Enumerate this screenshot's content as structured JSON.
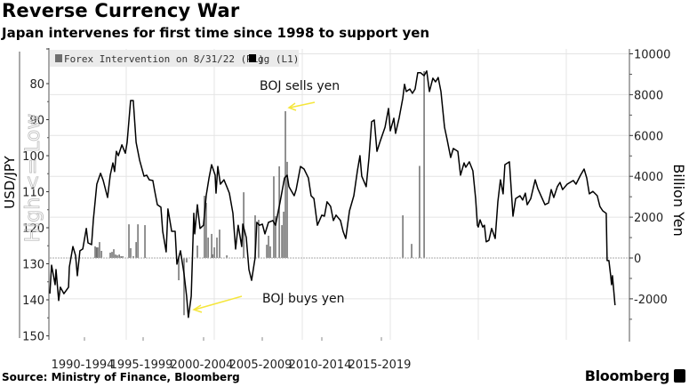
{
  "title": "Reverse Currency War",
  "subtitle": "Japan intervenes for first time since 1998 to support yen",
  "source": "Source: Ministry of Finance, Bloomberg",
  "brand": "Bloomberg",
  "chart_data": {
    "type": "bar+line",
    "left_axis": {
      "label": "USD/JPY",
      "watermark": "High <= Low",
      "ticks": [
        80,
        90,
        100,
        110,
        120,
        130,
        140,
        150
      ],
      "range": [
        76,
        150
      ],
      "inverted": true
    },
    "right_axis": {
      "label": "Billion Yen",
      "ticks": [
        10000,
        8000,
        6000,
        4000,
        2000,
        0,
        -2000
      ],
      "range": [
        -4000,
        10000
      ]
    },
    "x_tick_labels": [
      "1990-1994",
      "1995-1999",
      "2000-2004",
      "2005-2009",
      "2010-2014",
      "2015-2019"
    ],
    "x_range": [
      1990.6,
      2022.8
    ],
    "grid": true,
    "legend": {
      "position": "top-left",
      "items": [
        {
          "label": "Forex Intervention on 8/31/22 (R1)",
          "color": "#6e6e6e"
        },
        {
          "label": "gg (L1)",
          "color": "#000000"
        }
      ]
    },
    "annotations": [
      {
        "text": "BOJ sells yen",
        "color": "#f5e63c"
      },
      {
        "text": "BOJ buys yen",
        "color": "#f5e63c"
      }
    ],
    "series": [
      {
        "name": "gg (L1)",
        "type": "line",
        "axis": "left",
        "color": "#000000",
        "x": [
          1990.66,
          1990.76,
          1990.96,
          1991.01,
          1991.16,
          1991.26,
          1991.46,
          1991.72,
          1991.77,
          1991.97,
          1992.12,
          1992.22,
          1992.37,
          1992.53,
          1992.73,
          1992.83,
          1993.03,
          1993.13,
          1993.33,
          1993.54,
          1993.69,
          1993.94,
          1994.09,
          1994.24,
          1994.34,
          1994.44,
          1994.55,
          1994.75,
          1994.95,
          1995.05,
          1995.25,
          1995.4,
          1995.56,
          1995.76,
          1996.01,
          1996.16,
          1996.31,
          1996.51,
          1996.62,
          1996.77,
          1996.97,
          1997.07,
          1997.27,
          1997.37,
          1997.58,
          1997.78,
          1997.88,
          1998.08,
          1998.28,
          1998.43,
          1998.53,
          1998.69,
          1998.84,
          1998.89,
          1999.04,
          1999.19,
          1999.39,
          1999.54,
          1999.7,
          1999.85,
          2000.05,
          2000.1,
          2000.2,
          2000.35,
          2000.55,
          2000.71,
          2000.86,
          2001.06,
          2001.21,
          2001.36,
          2001.56,
          2001.62,
          2001.82,
          2001.97,
          2002.12,
          2002.32,
          2002.42,
          2002.57,
          2002.73,
          2002.88,
          2003.08,
          2003.33,
          2003.48,
          2003.74,
          2003.99,
          2004.14,
          2004.24,
          2004.34,
          2004.54,
          2004.65,
          2004.9,
          2005.1,
          2005.35,
          2005.5,
          2005.66,
          2005.86,
          2006.11,
          2006.26,
          2006.41,
          2006.61,
          2006.77,
          2006.92,
          2007.17,
          2007.32,
          2007.47,
          2007.68,
          2007.93,
          2008.13,
          2008.28,
          2008.38,
          2008.63,
          2008.79,
          2008.94,
          2009.09,
          2009.24,
          2009.44,
          2009.7,
          2009.9,
          2010.0,
          2010.2,
          2010.3,
          2010.5,
          2010.71,
          2010.81,
          2010.91,
          2011.11,
          2011.26,
          2011.41,
          2011.56,
          2011.72,
          2011.92,
          2012.07,
          2012.22,
          2012.42,
          2012.57,
          2012.72,
          2012.88,
          2013.08,
          2013.23,
          2013.43,
          2013.58,
          2013.84,
          2013.99,
          2014.19,
          2014.29,
          2014.49,
          2014.69,
          2014.85,
          2014.95,
          2015.0,
          2015.1,
          2015.25,
          2015.35,
          2015.45,
          2015.6,
          2015.76,
          2015.96,
          2016.11,
          2016.26,
          2016.41,
          2016.51,
          2016.77,
          2016.97,
          2017.12,
          2017.37,
          2017.52,
          2017.67,
          2017.78,
          2017.98,
          2018.23,
          2018.38,
          2018.63,
          2018.79,
          2018.99,
          2019.14,
          2019.29,
          2019.49,
          2019.64,
          2019.79,
          2020.05,
          2020.4,
          2020.55,
          2020.81,
          2021.01,
          2021.16,
          2021.31,
          2021.51,
          2021.76,
          2021.91,
          2022.07,
          2022.27,
          2022.32,
          2022.42,
          2022.52,
          2022.57,
          2022.62,
          2022.77
        ],
        "values": [
          138.3,
          130.4,
          135.8,
          131.6,
          140.2,
          136.5,
          138.3,
          136.5,
          130.9,
          125.2,
          127.7,
          133.3,
          126.4,
          125.9,
          120.2,
          124.2,
          124.7,
          117.8,
          107.9,
          104.9,
          106.9,
          111.6,
          105.4,
          102.0,
          104.4,
          98.8,
          100.0,
          97.0,
          99.3,
          96.3,
          84.7,
          84.7,
          96.3,
          101.2,
          105.7,
          105.4,
          106.7,
          106.9,
          109.9,
          113.6,
          114.3,
          121.0,
          126.7,
          114.8,
          121.0,
          121.0,
          130.1,
          126.4,
          132.6,
          139.0,
          144.9,
          139.0,
          116.0,
          121.7,
          113.6,
          120.2,
          119.3,
          111.1,
          106.2,
          102.5,
          105.4,
          110.4,
          103.0,
          107.9,
          106.7,
          108.6,
          110.4,
          116.0,
          125.9,
          119.3,
          125.2,
          119.0,
          122.7,
          131.6,
          134.6,
          128.4,
          118.5,
          119.3,
          119.0,
          121.7,
          118.5,
          118.0,
          119.3,
          112.8,
          106.2,
          105.4,
          108.6,
          109.4,
          111.1,
          109.4,
          103.0,
          103.7,
          106.2,
          111.1,
          111.9,
          119.3,
          116.5,
          116.8,
          112.8,
          114.1,
          118.0,
          116.5,
          118.0,
          121.0,
          123.0,
          115.3,
          111.1,
          104.2,
          100.0,
          105.7,
          108.6,
          100.7,
          90.6,
          90.1,
          98.8,
          95.8,
          92.1,
          86.9,
          93.1,
          89.6,
          93.8,
          89.6,
          84.0,
          80.2,
          82.2,
          81.5,
          82.7,
          81.5,
          77.0,
          77.0,
          77.8,
          76.5,
          82.2,
          78.5,
          79.5,
          78.3,
          82.2,
          92.1,
          95.6,
          100.5,
          98.0,
          98.8,
          105.4,
          102.0,
          103.2,
          101.7,
          104.2,
          111.9,
          119.3,
          119.8,
          117.8,
          119.8,
          119.3,
          123.9,
          123.5,
          120.2,
          123.0,
          112.8,
          106.7,
          110.6,
          102.5,
          101.7,
          116.8,
          111.9,
          111.1,
          112.3,
          110.4,
          113.6,
          111.9,
          106.7,
          109.1,
          111.9,
          113.6,
          113.1,
          109.4,
          111.6,
          108.6,
          107.4,
          109.4,
          107.9,
          106.9,
          107.9,
          105.4,
          103.7,
          106.2,
          110.6,
          109.9,
          111.1,
          114.1,
          115.3,
          116.0,
          129.1,
          129.1,
          133.3,
          135.8,
          133.3,
          141.5
        ]
      },
      {
        "name": "Forex Intervention on 8/31/22 (R1)",
        "type": "bar",
        "axis": "right",
        "color": "#6e6e6e",
        "x": [
          1993.23,
          1993.31,
          1993.38,
          1993.48,
          1993.59,
          1994.09,
          1994.19,
          1994.29,
          1994.39,
          1994.49,
          1994.6,
          1994.7,
          1994.8,
          1995.15,
          1995.25,
          1995.4,
          1995.56,
          1995.66,
          1996.06,
          1997.98,
          1998.28,
          1998.43,
          1999.04,
          1999.44,
          1999.54,
          1999.65,
          1999.85,
          1999.9,
          2000.0,
          2000.15,
          2000.3,
          2000.71,
          2001.67,
          2002.32,
          2002.52,
          2002.98,
          2003.08,
          2003.18,
          2003.38,
          2003.48,
          2003.69,
          2003.84,
          2003.94,
          2004.04,
          2004.14,
          2010.71,
          2011.21,
          2011.66,
          2011.92
        ],
        "values": [
          570,
          520,
          520,
          780,
          350,
          260,
          300,
          430,
          170,
          130,
          170,
          90,
          90,
          1650,
          480,
          90,
          780,
          1650,
          1610,
          -1090,
          -2800,
          -220,
          610,
          3050,
          2700,
          1000,
          1180,
          180,
          520,
          1000,
          1390,
          130,
          3220,
          2090,
          1870,
          650,
          1090,
          570,
          4000,
          2050,
          4490,
          1610,
          2270,
          7190,
          4710,
          2090,
          690,
          4510,
          9150
        ]
      }
    ]
  }
}
